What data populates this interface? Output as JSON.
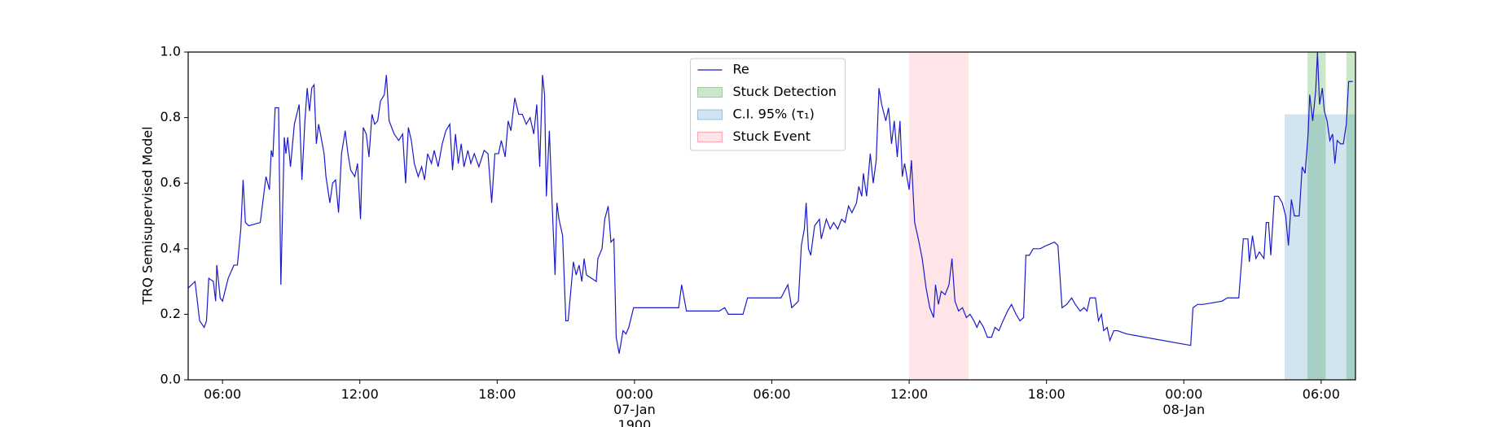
{
  "chart_data": {
    "type": "line",
    "ylabel": "TRQ Semisupervised Model",
    "xlim": [
      4.5,
      55.5
    ],
    "ylim": [
      0,
      1
    ],
    "xticks": [
      {
        "value": 6,
        "label": "06:00"
      },
      {
        "value": 12,
        "label": "12:00"
      },
      {
        "value": 18,
        "label": "18:00"
      },
      {
        "value": 24,
        "label": "00:00\n07-Jan\n1900"
      },
      {
        "value": 30,
        "label": "06:00"
      },
      {
        "value": 36,
        "label": "12:00"
      },
      {
        "value": 42,
        "label": "18:00"
      },
      {
        "value": 48,
        "label": "00:00\n08-Jan"
      },
      {
        "value": 54,
        "label": "06:00"
      }
    ],
    "yticks": [
      {
        "value": 0,
        "label": "0.0"
      },
      0.2,
      0.4,
      0.6,
      0.8,
      {
        "value": 1,
        "label": "1.0"
      }
    ],
    "legend": "upper center",
    "series": [
      {
        "name": "Re",
        "color": "#1a1acc",
        "x": [
          4.5,
          4.8,
          5.0,
          5.2,
          5.3,
          5.4,
          5.6,
          5.7,
          5.75,
          5.9,
          6.0,
          6.25,
          6.5,
          6.65,
          6.8,
          6.9,
          7.0,
          7.15,
          7.65,
          7.9,
          8.05,
          8.13,
          8.2,
          8.3,
          8.45,
          8.55,
          8.7,
          8.77,
          8.85,
          8.97,
          9.14,
          9.35,
          9.47,
          9.6,
          9.7,
          9.8,
          9.9,
          10.0,
          10.1,
          10.2,
          10.44,
          10.52,
          10.69,
          10.81,
          10.94,
          11.07,
          11.2,
          11.36,
          11.48,
          11.6,
          11.78,
          11.9,
          12.03,
          12.15,
          12.28,
          12.4,
          12.53,
          12.65,
          12.78,
          12.9,
          13.07,
          13.16,
          13.28,
          13.5,
          13.7,
          13.87,
          14.0,
          14.12,
          14.25,
          14.38,
          14.55,
          14.7,
          14.83,
          14.96,
          15.13,
          15.25,
          15.42,
          15.6,
          15.76,
          15.93,
          16.05,
          16.18,
          16.3,
          16.43,
          16.55,
          16.72,
          16.85,
          17.0,
          17.2,
          17.43,
          17.6,
          17.76,
          17.9,
          18.06,
          18.18,
          18.35,
          18.48,
          18.6,
          18.77,
          18.94,
          19.1,
          19.27,
          19.44,
          19.6,
          19.73,
          19.86,
          19.98,
          20.07,
          20.15,
          20.28,
          20.4,
          20.53,
          20.61,
          20.7,
          20.86,
          21.0,
          21.1,
          21.33,
          21.45,
          21.58,
          21.7,
          21.8,
          21.9,
          22.12,
          22.33,
          22.4,
          22.58,
          22.7,
          22.85,
          22.97,
          23.1,
          23.2,
          23.33,
          23.5,
          23.63,
          23.75,
          23.96,
          24.17,
          25.93,
          26.06,
          26.27,
          27.7,
          27.94,
          28.1,
          28.74,
          28.94,
          29.57,
          30.4,
          30.7,
          30.87,
          31.16,
          31.29,
          31.42,
          31.5,
          31.6,
          31.7,
          31.87,
          32.08,
          32.16,
          32.38,
          32.55,
          32.7,
          32.88,
          33.05,
          33.2,
          33.35,
          33.5,
          33.7,
          33.8,
          33.93,
          34.0,
          34.14,
          34.3,
          34.43,
          34.56,
          34.68,
          34.8,
          34.98,
          35.1,
          35.23,
          35.35,
          35.48,
          35.6,
          35.7,
          35.8,
          36.0,
          36.1,
          36.24,
          36.4,
          36.57,
          36.74,
          36.9,
          37.07,
          37.15,
          37.28,
          37.4,
          37.57,
          37.74,
          37.87,
          38.0,
          38.16,
          38.33,
          38.5,
          38.66,
          38.83,
          38.96,
          39.08,
          39.25,
          39.42,
          39.6,
          39.75,
          39.92,
          40.1,
          40.3,
          40.47,
          40.67,
          40.84,
          41.0,
          41.1,
          41.25,
          41.42,
          41.72,
          42.0,
          42.35,
          42.5,
          42.68,
          42.88,
          43.1,
          43.26,
          43.47,
          43.64,
          43.77,
          43.9,
          44.0,
          44.14,
          44.27,
          44.4,
          44.5,
          44.65,
          44.77,
          44.94,
          45.1,
          45.5,
          48.3,
          48.4,
          48.6,
          48.83,
          49.67,
          49.9,
          50.3,
          50.4,
          50.6,
          50.8,
          50.86,
          51.0,
          51.15,
          51.3,
          51.5,
          51.6,
          51.7,
          51.8,
          51.96,
          52.13,
          52.3,
          52.45,
          52.57,
          52.7,
          52.83,
          53.04,
          53.17,
          53.3,
          53.43,
          53.5,
          53.63,
          53.76,
          53.84,
          53.93,
          54.05,
          54.14,
          54.26,
          54.38,
          54.5,
          54.6,
          54.7,
          54.85,
          54.97,
          55.1,
          55.2,
          55.38
        ],
        "values": [
          0.28,
          0.3,
          0.18,
          0.16,
          0.18,
          0.31,
          0.3,
          0.24,
          0.35,
          0.25,
          0.24,
          0.31,
          0.35,
          0.35,
          0.46,
          0.61,
          0.48,
          0.47,
          0.48,
          0.62,
          0.58,
          0.7,
          0.68,
          0.83,
          0.83,
          0.29,
          0.74,
          0.69,
          0.74,
          0.65,
          0.78,
          0.84,
          0.61,
          0.79,
          0.89,
          0.82,
          0.89,
          0.9,
          0.72,
          0.78,
          0.69,
          0.62,
          0.54,
          0.6,
          0.61,
          0.51,
          0.69,
          0.76,
          0.69,
          0.64,
          0.62,
          0.66,
          0.49,
          0.77,
          0.75,
          0.68,
          0.81,
          0.78,
          0.79,
          0.85,
          0.87,
          0.93,
          0.79,
          0.75,
          0.73,
          0.75,
          0.6,
          0.77,
          0.73,
          0.66,
          0.62,
          0.65,
          0.61,
          0.69,
          0.66,
          0.7,
          0.65,
          0.72,
          0.76,
          0.78,
          0.64,
          0.75,
          0.66,
          0.72,
          0.65,
          0.7,
          0.66,
          0.69,
          0.65,
          0.7,
          0.69,
          0.54,
          0.69,
          0.69,
          0.73,
          0.68,
          0.79,
          0.76,
          0.86,
          0.81,
          0.81,
          0.78,
          0.8,
          0.75,
          0.84,
          0.65,
          0.93,
          0.87,
          0.56,
          0.76,
          0.54,
          0.32,
          0.54,
          0.49,
          0.44,
          0.18,
          0.18,
          0.36,
          0.32,
          0.35,
          0.3,
          0.37,
          0.32,
          0.31,
          0.3,
          0.37,
          0.4,
          0.49,
          0.53,
          0.42,
          0.43,
          0.13,
          0.08,
          0.15,
          0.14,
          0.16,
          0.22,
          0.22,
          0.22,
          0.29,
          0.21,
          0.21,
          0.22,
          0.2,
          0.2,
          0.25,
          0.25,
          0.25,
          0.29,
          0.22,
          0.24,
          0.41,
          0.46,
          0.54,
          0.4,
          0.38,
          0.47,
          0.49,
          0.43,
          0.49,
          0.46,
          0.48,
          0.46,
          0.49,
          0.48,
          0.53,
          0.51,
          0.54,
          0.59,
          0.56,
          0.63,
          0.56,
          0.69,
          0.6,
          0.67,
          0.89,
          0.84,
          0.79,
          0.83,
          0.72,
          0.79,
          0.68,
          0.79,
          0.62,
          0.66,
          0.58,
          0.67,
          0.48,
          0.43,
          0.37,
          0.28,
          0.22,
          0.19,
          0.29,
          0.23,
          0.27,
          0.26,
          0.29,
          0.37,
          0.24,
          0.21,
          0.22,
          0.19,
          0.2,
          0.18,
          0.16,
          0.18,
          0.16,
          0.13,
          0.13,
          0.16,
          0.15,
          0.18,
          0.21,
          0.23,
          0.2,
          0.18,
          0.19,
          0.38,
          0.38,
          0.4,
          0.4,
          0.41,
          0.42,
          0.41,
          0.22,
          0.23,
          0.25,
          0.23,
          0.21,
          0.22,
          0.21,
          0.25,
          0.25,
          0.25,
          0.18,
          0.2,
          0.15,
          0.16,
          0.12,
          0.15,
          0.15,
          0.14,
          0.105,
          0.22,
          0.23,
          0.23,
          0.24,
          0.25,
          0.25,
          0.25,
          0.43,
          0.43,
          0.36,
          0.44,
          0.37,
          0.39,
          0.37,
          0.48,
          0.48,
          0.38,
          0.56,
          0.56,
          0.54,
          0.5,
          0.41,
          0.55,
          0.5,
          0.5,
          0.65,
          0.63,
          0.75,
          0.87,
          0.79,
          0.88,
          1.0,
          0.84,
          0.89,
          0.82,
          0.79,
          0.73,
          0.75,
          0.66,
          0.73,
          0.72,
          0.72,
          0.78,
          0.91,
          0.91
        ]
      }
    ],
    "spans": [
      {
        "name": "Stuck Detection",
        "color": "#2ca02c",
        "opacity": 0.25,
        "ranges": [
          [
            53.4,
            54.2
          ],
          [
            55.1,
            55.5
          ]
        ]
      },
      {
        "name": "C.I. 95% (τ₁)",
        "color": "#1f77b4",
        "opacity": 0.2,
        "ranges": [
          [
            52.4,
            55.5
          ]
        ],
        "ymax": 0.81
      },
      {
        "name": "Stuck Event",
        "color": "#ff3344",
        "opacity": 0.13,
        "ranges": [
          [
            36.0,
            38.6
          ]
        ]
      }
    ]
  }
}
